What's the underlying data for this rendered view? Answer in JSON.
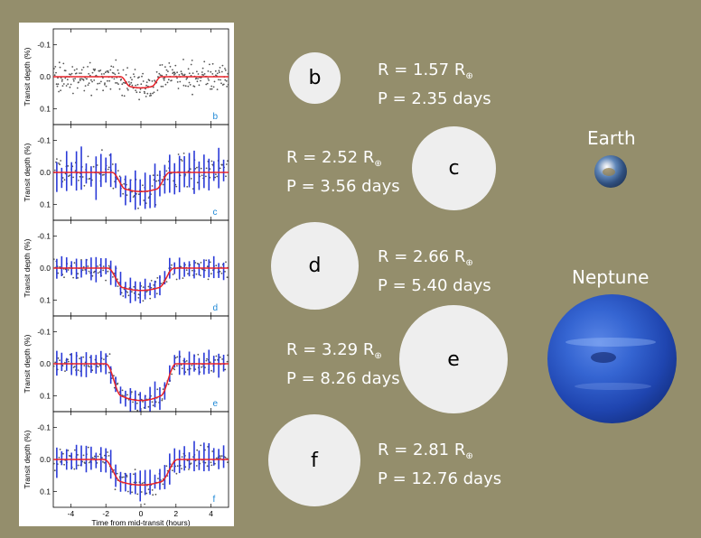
{
  "chart_data": {
    "type": "scatter",
    "xlabel": "Time from mid-transit (hours)",
    "ylabel": "Transit depth (%)",
    "xlim": [
      -5,
      5
    ],
    "ylim": [
      -0.15,
      0.15
    ],
    "y_inverted": true,
    "x_ticks": [
      "-4",
      "-2",
      "0",
      "2",
      "4"
    ],
    "y_ticks": [
      "-0.1",
      "0.0",
      "0.1"
    ],
    "panels": [
      {
        "label": "b",
        "label_color": "#1e88d6",
        "depth": 0.035,
        "t14": 2.3,
        "ingress": 0.55,
        "noise": 0.045,
        "blue_bars": false
      },
      {
        "label": "c",
        "label_color": "#1e88d6",
        "depth": 0.06,
        "t14": 3.3,
        "ingress": 0.8,
        "noise": 0.05,
        "blue_bars": true
      },
      {
        "label": "d",
        "label_color": "#1e88d6",
        "depth": 0.07,
        "t14": 3.8,
        "ingress": 0.9,
        "noise": 0.03,
        "blue_bars": true
      },
      {
        "label": "e",
        "label_color": "#1e88d6",
        "depth": 0.115,
        "t14": 4.0,
        "ingress": 0.9,
        "noise": 0.03,
        "blue_bars": true
      },
      {
        "label": "f",
        "label_color": "#1e88d6",
        "depth": 0.08,
        "t14": 4.2,
        "ingress": 1.0,
        "noise": 0.035,
        "blue_bars": true
      }
    ]
  },
  "planets": [
    {
      "letter": "b",
      "radius_label": "R = 1.57 R",
      "period_label": "P = 2.35 days"
    },
    {
      "letter": "c",
      "radius_label": "R = 2.52 R",
      "period_label": "P = 3.56 days"
    },
    {
      "letter": "d",
      "radius_label": "R = 2.66 R",
      "period_label": "P = 5.40 days"
    },
    {
      "letter": "e",
      "radius_label": "R = 3.29 R",
      "period_label": "P = 8.26 days"
    },
    {
      "letter": "f",
      "radius_label": "R = 2.81 R",
      "period_label": "P = 12.76 days"
    }
  ],
  "earth_subscript": "⊕",
  "references": {
    "earth": {
      "name": "Earth"
    },
    "neptune": {
      "name": "Neptune"
    }
  },
  "colors": {
    "background": "#948e6c",
    "model_curve": "#e8232a",
    "data_points": "#555555",
    "binned_bars": "#2a3ad8",
    "planet_fill": "#eeeeee"
  }
}
